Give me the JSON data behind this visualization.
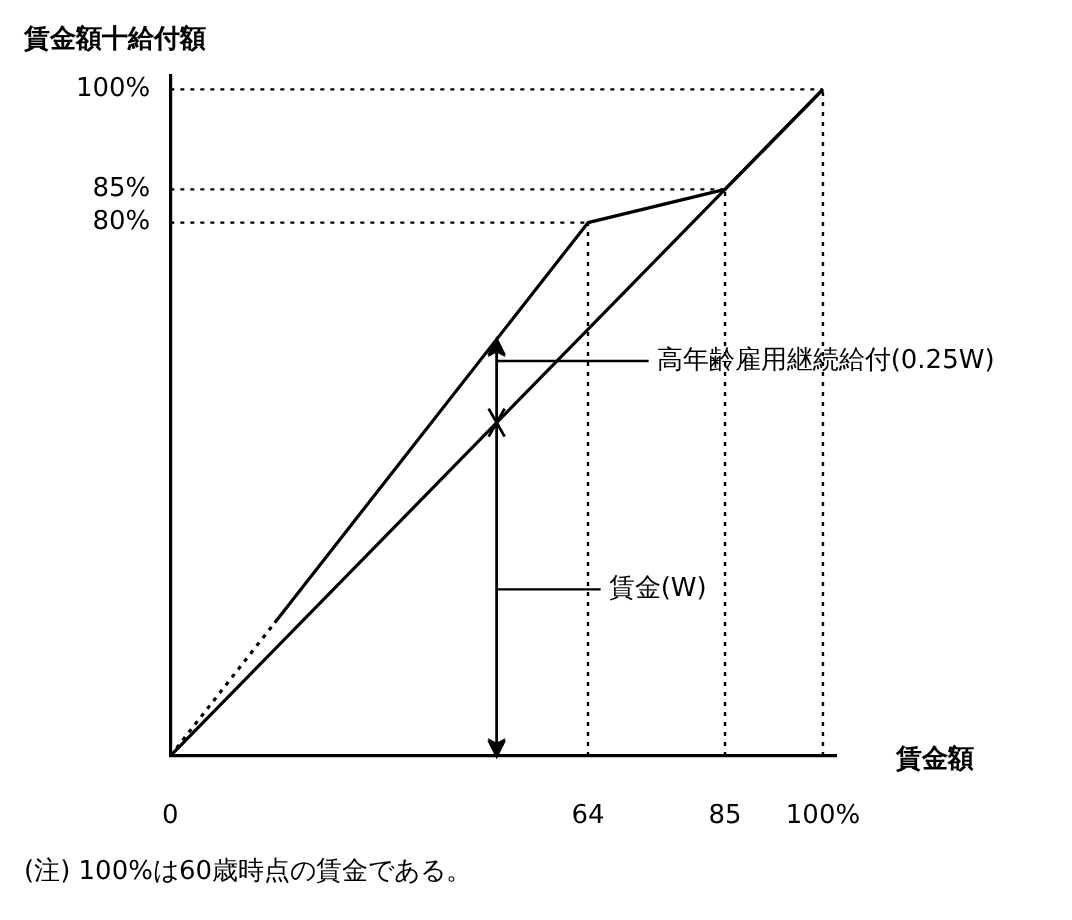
{
  "chart_data": {
    "type": "line",
    "xlabel": "賃金額",
    "ylabel": "賃金額十給付額",
    "annotations": [
      "高年齢雇用継続給付(0.25W)",
      "賃金(W)",
      "(注) 100%は60歳時点の賃金である。"
    ],
    "series": [
      {
        "color": "#000000",
        "x": [
          0,
          100
        ],
        "values": [
          0,
          100
        ]
      },
      {
        "color": "#000000",
        "x": [
          0,
          16
        ],
        "values": [
          0,
          20
        ],
        "line_style": "dotted"
      },
      {
        "color": "#000000",
        "x": [
          16,
          64,
          85,
          100
        ],
        "values": [
          20,
          80,
          85,
          100
        ]
      }
    ],
    "xlim": [
      0,
      102
    ],
    "ylim": [
      0,
      102
    ],
    "xticks": [
      0,
      64,
      85,
      {
        "value": 100,
        "label": "100%"
      }
    ],
    "yticks": [
      {
        "value": 80,
        "label": "80%"
      },
      {
        "value": 85,
        "label": "85%"
      },
      {
        "value": 100,
        "label": "100%"
      }
    ],
    "ref_lines": [
      {
        "axis": "x",
        "value": 64,
        "line_style": "dotted"
      },
      {
        "axis": "x",
        "value": 85,
        "line_style": "dotted"
      },
      {
        "axis": "x",
        "value": 100,
        "line_style": "dotted"
      },
      {
        "axis": "y",
        "value": 80,
        "line_style": "dotted"
      },
      {
        "axis": "y",
        "value": 85,
        "line_style": "dotted"
      },
      {
        "axis": "y",
        "value": 100,
        "line_style": "dotted"
      }
    ],
    "marker": "none",
    "line_style": "solid"
  }
}
